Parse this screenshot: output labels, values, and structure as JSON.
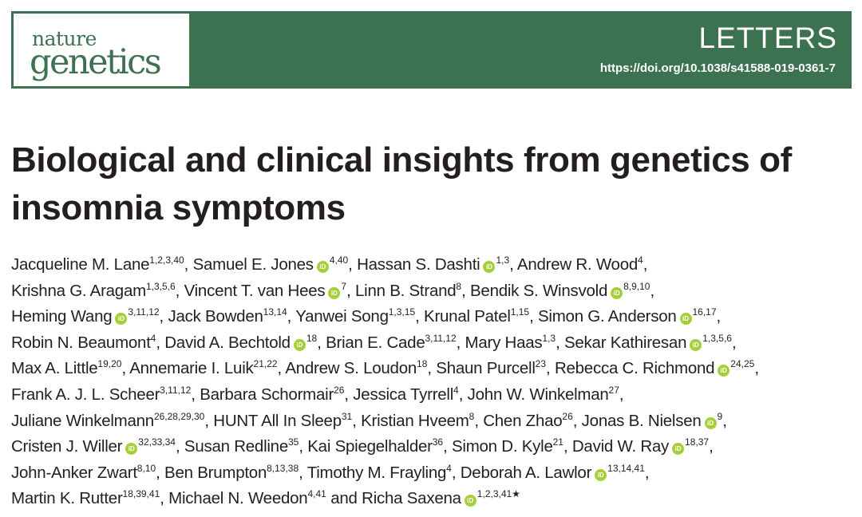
{
  "journal": {
    "logo_line1": "nature",
    "logo_line2": "genetics"
  },
  "header": {
    "section": "LETTERS",
    "doi": "https://doi.org/10.1038/s41588-019-0361-7"
  },
  "title": "Biological and clinical insights from genetics of insomnia symptoms",
  "orcid_icon_label": "iD",
  "authors": [
    {
      "name": "Jacqueline M. Lane",
      "aff": "1,2,3,40",
      "orcid": false,
      "sep": ", "
    },
    {
      "name": "Samuel E. Jones",
      "aff": "4,40",
      "orcid": true,
      "sep": ", "
    },
    {
      "name": "Hassan S. Dashti",
      "aff": "1,3",
      "orcid": true,
      "sep": ", "
    },
    {
      "name": "Andrew R. Wood",
      "aff": "4",
      "orcid": false,
      "sep": ","
    },
    {
      "name": "Krishna G. Aragam",
      "aff": "1,3,5,6",
      "orcid": false,
      "sep": ", "
    },
    {
      "name": "Vincent T. van Hees",
      "aff": "7",
      "orcid": true,
      "sep": ", "
    },
    {
      "name": "Linn B. Strand",
      "aff": "8",
      "orcid": false,
      "sep": ", "
    },
    {
      "name": "Bendik S. Winsvold",
      "aff": "8,9,10",
      "orcid": true,
      "sep": ","
    },
    {
      "name": "Heming Wang",
      "aff": "3,11,12",
      "orcid": true,
      "sep": ", "
    },
    {
      "name": "Jack Bowden",
      "aff": "13,14",
      "orcid": false,
      "sep": ", "
    },
    {
      "name": "Yanwei Song",
      "aff": "1,3,15",
      "orcid": false,
      "sep": ", "
    },
    {
      "name": "Krunal Patel",
      "aff": "1,15",
      "orcid": false,
      "sep": ", "
    },
    {
      "name": "Simon G. Anderson",
      "aff": "16,17",
      "orcid": true,
      "sep": ","
    },
    {
      "name": "Robin N. Beaumont",
      "aff": "4",
      "orcid": false,
      "sep": ", "
    },
    {
      "name": "David A. Bechtold",
      "aff": "18",
      "orcid": true,
      "sep": ", "
    },
    {
      "name": "Brian E. Cade",
      "aff": "3,11,12",
      "orcid": false,
      "sep": ", "
    },
    {
      "name": "Mary Haas",
      "aff": "1,3",
      "orcid": false,
      "sep": ", "
    },
    {
      "name": "Sekar Kathiresan",
      "aff": "1,3,5,6",
      "orcid": true,
      "sep": ","
    },
    {
      "name": "Max A. Little",
      "aff": "19,20",
      "orcid": false,
      "sep": ", "
    },
    {
      "name": "Annemarie I. Luik",
      "aff": "21,22",
      "orcid": false,
      "sep": ", "
    },
    {
      "name": "Andrew S. Loudon",
      "aff": "18",
      "orcid": false,
      "sep": ", "
    },
    {
      "name": "Shaun Purcell",
      "aff": "23",
      "orcid": false,
      "sep": ", "
    },
    {
      "name": "Rebecca C. Richmond",
      "aff": "24,25",
      "orcid": true,
      "sep": ","
    },
    {
      "name": "Frank A. J. L. Scheer",
      "aff": "3,11,12",
      "orcid": false,
      "sep": ", "
    },
    {
      "name": "Barbara Schormair",
      "aff": "26",
      "orcid": false,
      "sep": ", "
    },
    {
      "name": "Jessica Tyrrell",
      "aff": "4",
      "orcid": false,
      "sep": ", "
    },
    {
      "name": "John W. Winkelman",
      "aff": "27",
      "orcid": false,
      "sep": ","
    },
    {
      "name": "Juliane Winkelmann",
      "aff": "26,28,29,30",
      "orcid": false,
      "sep": ", "
    },
    {
      "name": "HUNT All In Sleep",
      "aff": "31",
      "orcid": false,
      "sep": ", "
    },
    {
      "name": "Kristian Hveem",
      "aff": "8",
      "orcid": false,
      "sep": ", "
    },
    {
      "name": "Chen Zhao",
      "aff": "26",
      "orcid": false,
      "sep": ", "
    },
    {
      "name": "Jonas B. Nielsen",
      "aff": "9",
      "orcid": true,
      "sep": ","
    },
    {
      "name": "Cristen J. Willer",
      "aff": "32,33,34",
      "orcid": true,
      "sep": ", "
    },
    {
      "name": "Susan Redline",
      "aff": "35",
      "orcid": false,
      "sep": ", "
    },
    {
      "name": "Kai Spiegelhalder",
      "aff": "36",
      "orcid": false,
      "sep": ", "
    },
    {
      "name": "Simon D. Kyle",
      "aff": "21",
      "orcid": false,
      "sep": ", "
    },
    {
      "name": "David W. Ray",
      "aff": "18,37",
      "orcid": true,
      "sep": ","
    },
    {
      "name": "John-Anker Zwart",
      "aff": "8,10",
      "orcid": false,
      "sep": ", "
    },
    {
      "name": "Ben Brumpton",
      "aff": "8,13,38",
      "orcid": false,
      "sep": ", "
    },
    {
      "name": "Timothy M. Frayling",
      "aff": "4",
      "orcid": false,
      "sep": ", "
    },
    {
      "name": "Deborah A. Lawlor",
      "aff": "13,14,41",
      "orcid": true,
      "sep": ","
    },
    {
      "name": "Martin K. Rutter",
      "aff": "18,39,41",
      "orcid": false,
      "sep": ", "
    },
    {
      "name": "Michael N. Weedon",
      "aff": "4,41",
      "orcid": false,
      "sep": " and "
    },
    {
      "name": "Richa Saxena",
      "aff": "1,2,3,41★",
      "orcid": true,
      "sep": ""
    }
  ]
}
